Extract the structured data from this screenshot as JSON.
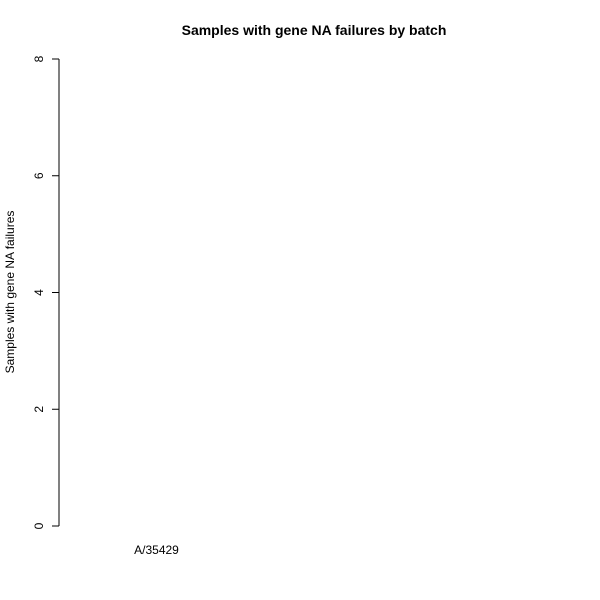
{
  "chart_data": {
    "type": "bar",
    "title": "Samples with gene NA failures by batch",
    "xlabel": "",
    "ylabel": "Samples with gene NA failures",
    "categories": [
      "A/35429"
    ],
    "values": [
      0
    ],
    "ylim": [
      0,
      8
    ],
    "yticks": [
      0,
      2,
      4,
      6,
      8
    ],
    "grid": false,
    "colors": {
      "bar_fill": "#ffffff",
      "bar_stroke": "#000000",
      "axis": "#000000",
      "text": "#000000"
    }
  }
}
